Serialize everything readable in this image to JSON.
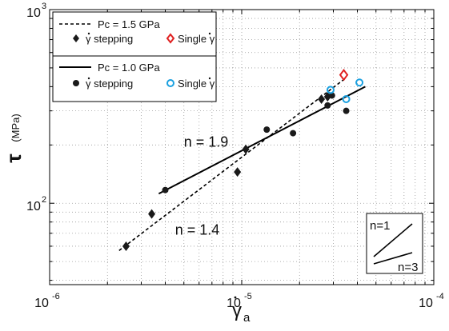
{
  "chart_data": {
    "type": "scatter",
    "x_scale": "log",
    "y_scale": "log",
    "xlim": [
      1e-06,
      0.0001
    ],
    "ylim": [
      38,
      1000
    ],
    "grid": "major and minor, dotted",
    "x_ticks": [
      {
        "value": 1e-06,
        "base": "10",
        "exp": "-6"
      },
      {
        "value": 1e-05,
        "base": "10",
        "exp": "-5"
      },
      {
        "value": 0.0001,
        "base": "10",
        "exp": "-4"
      }
    ],
    "y_ticks": [
      {
        "value": 100,
        "base": "10",
        "exp": "2"
      },
      {
        "value": 1000,
        "base": "10",
        "exp": "3"
      }
    ],
    "xlabel": {
      "symbol": "γ",
      "subscript": "a"
    },
    "ylabel": {
      "symbol": "τ",
      "unit": "(MPa)"
    },
    "legend": {
      "placement": "top-left",
      "groups": [
        {
          "line_label": "Pc = 1.5 GPa",
          "line_style": "dashed",
          "entries": [
            {
              "label": "γ stepping",
              "marker": "diamond-filled",
              "color": "#1a1a1a"
            },
            {
              "label": "Single γ",
              "marker": "diamond-open",
              "color": "#e02020"
            }
          ]
        },
        {
          "line_label": "Pc = 1.0 GPa",
          "line_style": "solid",
          "entries": [
            {
              "label": "γ stepping",
              "marker": "circle-filled",
              "color": "#1a1a1a"
            },
            {
              "label": "Single γ",
              "marker": "circle-open",
              "color": "#1aa0e0"
            }
          ]
        }
      ]
    },
    "series": [
      {
        "marker": "diamond-filled",
        "color": "#1a1a1a",
        "points": [
          [
            2.5e-06,
            60
          ],
          [
            3.4e-06,
            88
          ],
          [
            1.05e-05,
            190
          ],
          [
            9.5e-06,
            145
          ],
          [
            2.6e-05,
            345
          ],
          [
            2.8e-05,
            355
          ]
        ]
      },
      {
        "marker": "diamond-open",
        "color": "#e02020",
        "points": [
          [
            3.4e-05,
            460
          ]
        ]
      },
      {
        "marker": "circle-filled",
        "color": "#1a1a1a",
        "points": [
          [
            4e-06,
            117
          ],
          [
            1.35e-05,
            240
          ],
          [
            1.85e-05,
            230
          ],
          [
            2.8e-05,
            320
          ],
          [
            2.95e-05,
            360
          ],
          [
            3.5e-05,
            300
          ]
        ]
      },
      {
        "marker": "circle-open",
        "color": "#1aa0e0",
        "points": [
          [
            2.9e-05,
            385
          ],
          [
            3.5e-05,
            345
          ],
          [
            4.1e-05,
            420
          ]
        ]
      }
    ],
    "fits": [
      {
        "style": "dashed",
        "points": [
          [
            2.3e-06,
            57
          ],
          [
            3.5e-05,
            445
          ]
        ]
      },
      {
        "style": "solid",
        "points": [
          [
            3.7e-06,
            112
          ],
          [
            4.4e-05,
            400
          ]
        ]
      }
    ],
    "annotations": [
      {
        "text": "n = 1.9",
        "anchor": [
          5e-06,
          196
        ]
      },
      {
        "text": "n = 1.4",
        "anchor": [
          4.5e-06,
          69
        ]
      }
    ],
    "inset": {
      "labels": [
        "n=1",
        "n=3"
      ],
      "placement": "bottom-right"
    }
  }
}
